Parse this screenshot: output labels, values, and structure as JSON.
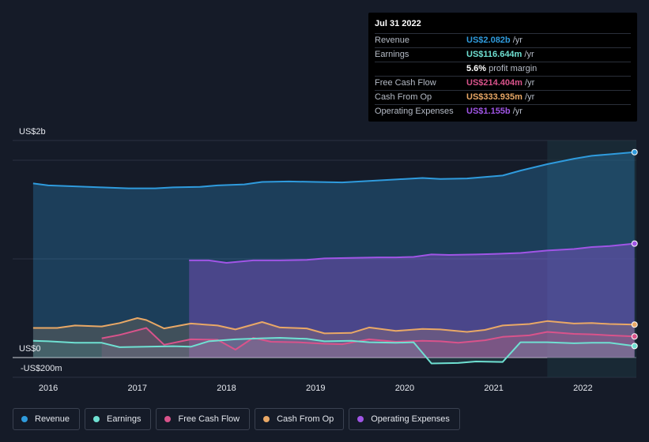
{
  "tooltip": {
    "date": "Jul 31 2022",
    "rows": [
      {
        "name": "Revenue",
        "value": "US$2.082b",
        "unit": " /yr",
        "color": "#2f9bdd"
      },
      {
        "name": "Earnings",
        "value": "US$116.644m",
        "unit": " /yr",
        "color": "#6fe0d2"
      },
      {
        "name": "",
        "value": "5.6%",
        "unit": " profit margin",
        "color": "#ffffff"
      },
      {
        "name": "Free Cash Flow",
        "value": "US$214.404m",
        "unit": " /yr",
        "color": "#d9538b"
      },
      {
        "name": "Cash From Op",
        "value": "US$333.935m",
        "unit": " /yr",
        "color": "#e9a866"
      },
      {
        "name": "Operating Expenses",
        "value": "US$1.155b",
        "unit": " /yr",
        "color": "#a055e6"
      }
    ]
  },
  "legend": [
    {
      "label": "Revenue",
      "color": "#2f9bdd"
    },
    {
      "label": "Earnings",
      "color": "#6fe0d2"
    },
    {
      "label": "Free Cash Flow",
      "color": "#d9538b"
    },
    {
      "label": "Cash From Op",
      "color": "#e9a866"
    },
    {
      "label": "Operating Expenses",
      "color": "#a055e6"
    }
  ],
  "chart_data": {
    "type": "area",
    "y_labels": {
      "top": "US$2b",
      "zero": "US$0",
      "bottom": "-US$200m"
    },
    "ylim": [
      -200,
      2200
    ],
    "xlim": [
      2015.6,
      2022.6
    ],
    "x_ticks": [
      2016,
      2017,
      2018,
      2019,
      2020,
      2021,
      2022
    ],
    "x_tick_labels": [
      "2016",
      "2017",
      "2018",
      "2019",
      "2020",
      "2021",
      "2022"
    ],
    "highlight_from": 2021.6,
    "series": [
      {
        "name": "Revenue",
        "color": "#2f9bdd",
        "points": [
          [
            2015.83,
            1765
          ],
          [
            2016.0,
            1745
          ],
          [
            2016.3,
            1735
          ],
          [
            2016.6,
            1725
          ],
          [
            2016.9,
            1715
          ],
          [
            2017.2,
            1715
          ],
          [
            2017.4,
            1725
          ],
          [
            2017.7,
            1730
          ],
          [
            2017.9,
            1745
          ],
          [
            2018.2,
            1755
          ],
          [
            2018.4,
            1780
          ],
          [
            2018.7,
            1785
          ],
          [
            2019.0,
            1780
          ],
          [
            2019.3,
            1775
          ],
          [
            2019.6,
            1790
          ],
          [
            2019.9,
            1805
          ],
          [
            2020.2,
            1820
          ],
          [
            2020.4,
            1810
          ],
          [
            2020.7,
            1815
          ],
          [
            2020.9,
            1830
          ],
          [
            2021.1,
            1845
          ],
          [
            2021.3,
            1895
          ],
          [
            2021.6,
            1960
          ],
          [
            2021.9,
            2015
          ],
          [
            2022.1,
            2045
          ],
          [
            2022.3,
            2060
          ],
          [
            2022.58,
            2082
          ]
        ]
      },
      {
        "name": "Operating Expenses",
        "color": "#a055e6",
        "points": [
          [
            2017.58,
            985
          ],
          [
            2017.8,
            985
          ],
          [
            2018.0,
            960
          ],
          [
            2018.3,
            985
          ],
          [
            2018.6,
            985
          ],
          [
            2018.9,
            990
          ],
          [
            2019.1,
            1005
          ],
          [
            2019.4,
            1010
          ],
          [
            2019.7,
            1015
          ],
          [
            2019.9,
            1015
          ],
          [
            2020.1,
            1020
          ],
          [
            2020.3,
            1045
          ],
          [
            2020.5,
            1040
          ],
          [
            2020.8,
            1045
          ],
          [
            2021.0,
            1050
          ],
          [
            2021.3,
            1060
          ],
          [
            2021.6,
            1085
          ],
          [
            2021.9,
            1100
          ],
          [
            2022.1,
            1120
          ],
          [
            2022.3,
            1130
          ],
          [
            2022.58,
            1155
          ]
        ]
      },
      {
        "name": "Cash From Op",
        "color": "#e9a866",
        "points": [
          [
            2015.83,
            300
          ],
          [
            2016.1,
            300
          ],
          [
            2016.3,
            325
          ],
          [
            2016.6,
            315
          ],
          [
            2016.8,
            350
          ],
          [
            2017.0,
            400
          ],
          [
            2017.1,
            380
          ],
          [
            2017.3,
            295
          ],
          [
            2017.6,
            345
          ],
          [
            2017.9,
            325
          ],
          [
            2018.1,
            285
          ],
          [
            2018.4,
            360
          ],
          [
            2018.6,
            305
          ],
          [
            2018.9,
            295
          ],
          [
            2019.1,
            245
          ],
          [
            2019.4,
            250
          ],
          [
            2019.6,
            305
          ],
          [
            2019.9,
            270
          ],
          [
            2020.2,
            290
          ],
          [
            2020.4,
            285
          ],
          [
            2020.7,
            260
          ],
          [
            2020.9,
            280
          ],
          [
            2021.1,
            325
          ],
          [
            2021.4,
            340
          ],
          [
            2021.6,
            370
          ],
          [
            2021.9,
            345
          ],
          [
            2022.1,
            350
          ],
          [
            2022.3,
            340
          ],
          [
            2022.58,
            334
          ]
        ]
      },
      {
        "name": "Free Cash Flow",
        "color": "#d9538b",
        "points": [
          [
            2016.6,
            195
          ],
          [
            2016.8,
            230
          ],
          [
            2017.1,
            300
          ],
          [
            2017.3,
            130
          ],
          [
            2017.6,
            185
          ],
          [
            2017.9,
            180
          ],
          [
            2018.1,
            80
          ],
          [
            2018.3,
            200
          ],
          [
            2018.5,
            160
          ],
          [
            2018.8,
            155
          ],
          [
            2019.1,
            140
          ],
          [
            2019.3,
            135
          ],
          [
            2019.6,
            185
          ],
          [
            2019.9,
            160
          ],
          [
            2020.2,
            170
          ],
          [
            2020.4,
            165
          ],
          [
            2020.6,
            150
          ],
          [
            2020.9,
            175
          ],
          [
            2021.1,
            210
          ],
          [
            2021.4,
            225
          ],
          [
            2021.6,
            260
          ],
          [
            2021.9,
            240
          ],
          [
            2022.1,
            235
          ],
          [
            2022.3,
            225
          ],
          [
            2022.58,
            214
          ]
        ]
      },
      {
        "name": "Earnings",
        "color": "#6fe0d2",
        "points": [
          [
            2015.83,
            170
          ],
          [
            2016.0,
            165
          ],
          [
            2016.3,
            150
          ],
          [
            2016.6,
            150
          ],
          [
            2016.8,
            105
          ],
          [
            2017.1,
            110
          ],
          [
            2017.4,
            115
          ],
          [
            2017.6,
            110
          ],
          [
            2017.8,
            165
          ],
          [
            2018.1,
            185
          ],
          [
            2018.4,
            195
          ],
          [
            2018.6,
            200
          ],
          [
            2018.9,
            190
          ],
          [
            2019.1,
            165
          ],
          [
            2019.4,
            170
          ],
          [
            2019.6,
            155
          ],
          [
            2019.9,
            150
          ],
          [
            2020.1,
            155
          ],
          [
            2020.3,
            -60
          ],
          [
            2020.6,
            -55
          ],
          [
            2020.8,
            -40
          ],
          [
            2021.1,
            -45
          ],
          [
            2021.3,
            155
          ],
          [
            2021.6,
            155
          ],
          [
            2021.9,
            145
          ],
          [
            2022.1,
            150
          ],
          [
            2022.3,
            150
          ],
          [
            2022.58,
            117
          ]
        ]
      }
    ]
  }
}
